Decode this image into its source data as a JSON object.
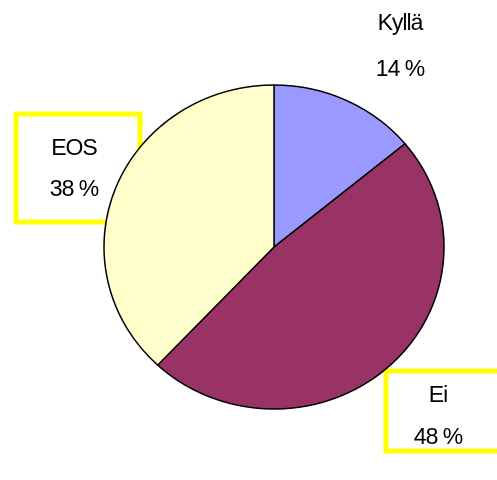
{
  "chart_data": {
    "type": "pie",
    "categories": [
      "Kyllä",
      "Ei",
      "EOS"
    ],
    "values": [
      14,
      48,
      38
    ],
    "value_labels": [
      "14 %",
      "48 %",
      "38 %"
    ],
    "colors": [
      "#9999ff",
      "#993366",
      "#ffffcc"
    ]
  }
}
